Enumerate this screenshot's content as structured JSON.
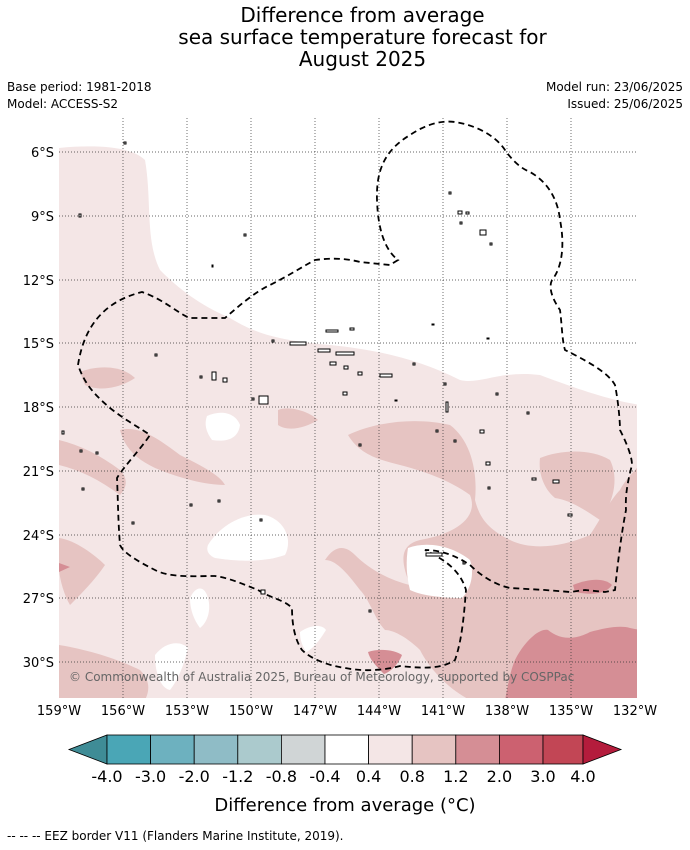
{
  "title": {
    "line1": "Difference from average",
    "line2": "sea surface temperature forecast for",
    "line3": "August 2025"
  },
  "meta": {
    "base_period": "Base period: 1981-2018",
    "model": "Model: ACCESS-S2",
    "model_run": "Model run: 23/06/2025",
    "issued": "Issued: 25/06/2025"
  },
  "map": {
    "lat_labels": [
      "6°S",
      "9°S",
      "12°S",
      "15°S",
      "18°S",
      "21°S",
      "24°S",
      "27°S",
      "30°S"
    ],
    "lon_labels": [
      "159°W",
      "156°W",
      "153°W",
      "150°W",
      "147°W",
      "144°W",
      "141°W",
      "138°W",
      "135°W",
      "132°W"
    ],
    "copyright": "© Commonwealth of Australia 2025, Bureau of Meteorology, supported by COSPPac"
  },
  "colorbar": {
    "labels": [
      "-4.0",
      "-3.0",
      "-2.0",
      "-1.2",
      "-0.8",
      "-0.4",
      "0.4",
      "0.8",
      "1.2",
      "2.0",
      "3.0",
      "4.0"
    ],
    "colors": [
      "#3f8c96",
      "#4aa6b6",
      "#6db1bf",
      "#8fbcc6",
      "#abcacd",
      "#d0d5d6",
      "#ffffff",
      "#f4e6e6",
      "#e6c4c2",
      "#d58e95",
      "#cc6170",
      "#c24655",
      "#b41c3c"
    ],
    "title": "Difference from average (°C)"
  },
  "footer": "-- -- -- EEZ border V11 (Flanders Marine Institute, 2019)."
}
